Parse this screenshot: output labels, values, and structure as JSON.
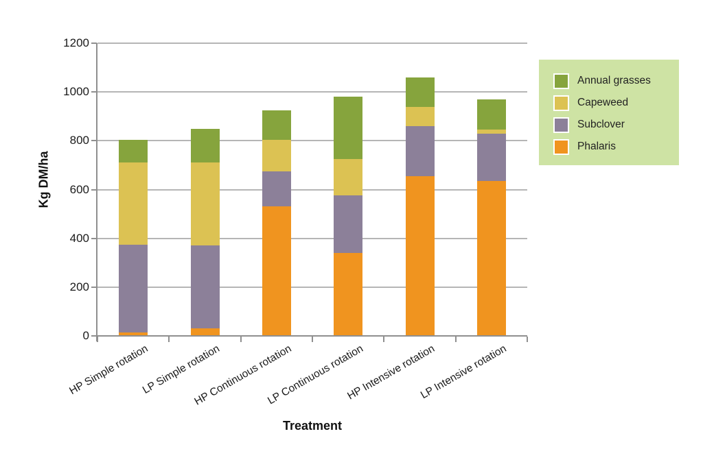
{
  "figure": {
    "background": "#ffffff",
    "text_color": "#1a1a1a"
  },
  "chart_data": {
    "type": "bar",
    "stacked": true,
    "xlabel": "Treatment",
    "ylabel": "Kg DM/ha",
    "ylim": [
      0,
      1200
    ],
    "yticks": [
      0,
      200,
      400,
      600,
      800,
      1000,
      1200
    ],
    "grid": true,
    "categories": [
      "HP Simple rotation",
      "LP Simple rotation",
      "HP Continuous rotation",
      "LP Continuous rotation",
      "HP Intensive rotation",
      "LP Intensive rotation"
    ],
    "series": [
      {
        "name": "Phalaris",
        "color": "#f0941f",
        "values": [
          15,
          30,
          530,
          340,
          655,
          635
        ]
      },
      {
        "name": "Subclover",
        "color": "#8c8099",
        "values": [
          360,
          340,
          145,
          235,
          205,
          195
        ]
      },
      {
        "name": "Capeweed",
        "color": "#dcc253",
        "values": [
          335,
          340,
          130,
          150,
          80,
          15
        ]
      },
      {
        "name": "Annual grasses",
        "color": "#86a43d",
        "values": [
          95,
          140,
          120,
          255,
          120,
          125
        ]
      }
    ],
    "totals": [
      805,
      850,
      925,
      980,
      1060,
      970
    ],
    "legend": {
      "position": "top-right",
      "background": "#cee3a4",
      "entries": [
        "Annual grasses",
        "Capeweed",
        "Subclover",
        "Phalaris"
      ]
    },
    "colors": {
      "gridline": "#b5b5b5",
      "axis": "#8f8f8f"
    }
  }
}
